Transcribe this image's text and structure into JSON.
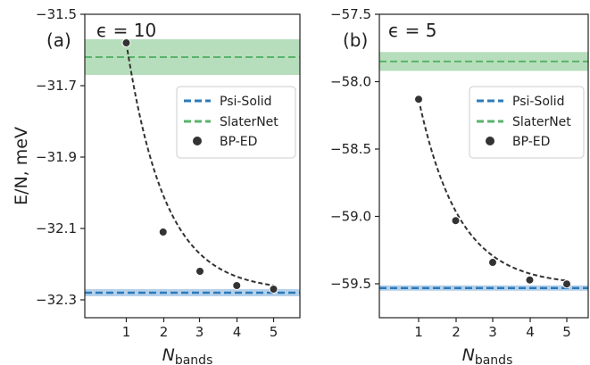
{
  "colors": {
    "psi_solid": "#2b7bba",
    "psi_band": "#a8c8e6",
    "slaternet": "#59b36a",
    "slater_band": "#9fd3a5",
    "bp_ed": "#333333",
    "fit": "#333333",
    "axes": "#222222"
  },
  "chart_data": [
    {
      "type": "line",
      "panel_label": "(a)",
      "epsilon_text": "ϵ = 10",
      "ylabel": "E/N, meV",
      "xlabel_main": "N",
      "xlabel_sub": "bands",
      "ylim": [
        -32.35,
        -31.5
      ],
      "xlim": [
        0,
        5.7
      ],
      "xticks": [
        "1",
        "2",
        "3",
        "4",
        "5"
      ],
      "yticks": [
        "−31.5",
        "−31.7",
        "−31.9",
        "−32.1",
        "−32.3"
      ],
      "ytick_values": [
        -31.5,
        -31.7,
        -31.9,
        -32.1,
        -32.3
      ],
      "series": [
        {
          "name": "Psi-Solid",
          "kind": "hline",
          "value": -32.28,
          "band": [
            -32.29,
            -32.27
          ]
        },
        {
          "name": "SlaterNet",
          "kind": "hline",
          "value": -31.62,
          "band": [
            -31.67,
            -31.57
          ]
        },
        {
          "name": "BP-ED",
          "kind": "scatter",
          "x": [
            1,
            2,
            3,
            4,
            5
          ],
          "y": [
            -31.58,
            -32.11,
            -32.22,
            -32.26,
            -32.27
          ]
        }
      ],
      "fit": {
        "asymptote": -32.275,
        "x0": 1,
        "y0": -31.58,
        "decay": 0.95
      },
      "legend_position": "right-center"
    },
    {
      "type": "line",
      "panel_label": "(b)",
      "epsilon_text": "ϵ = 5",
      "ylabel": "",
      "xlabel_main": "N",
      "xlabel_sub": "bands",
      "ylim": [
        -59.75,
        -57.5
      ],
      "xlim": [
        0,
        5.7
      ],
      "xticks": [
        "1",
        "2",
        "3",
        "4",
        "5"
      ],
      "yticks": [
        "−57.5",
        "−58.0",
        "−58.5",
        "−59.0",
        "−59.5"
      ],
      "ytick_values": [
        -57.5,
        -58.0,
        -58.5,
        -59.0,
        -59.5
      ],
      "series": [
        {
          "name": "Psi-Solid",
          "kind": "hline",
          "value": -59.53,
          "band": [
            -59.55,
            -59.51
          ]
        },
        {
          "name": "SlaterNet",
          "kind": "hline",
          "value": -57.85,
          "band": [
            -57.92,
            -57.78
          ]
        },
        {
          "name": "BP-ED",
          "kind": "scatter",
          "x": [
            1,
            2,
            3,
            4,
            5
          ],
          "y": [
            -58.13,
            -59.03,
            -59.34,
            -59.47,
            -59.5
          ]
        }
      ],
      "fit": {
        "asymptote": -59.51,
        "x0": 1,
        "y0": -58.13,
        "decay": 0.92
      },
      "legend_position": "right-center"
    }
  ]
}
